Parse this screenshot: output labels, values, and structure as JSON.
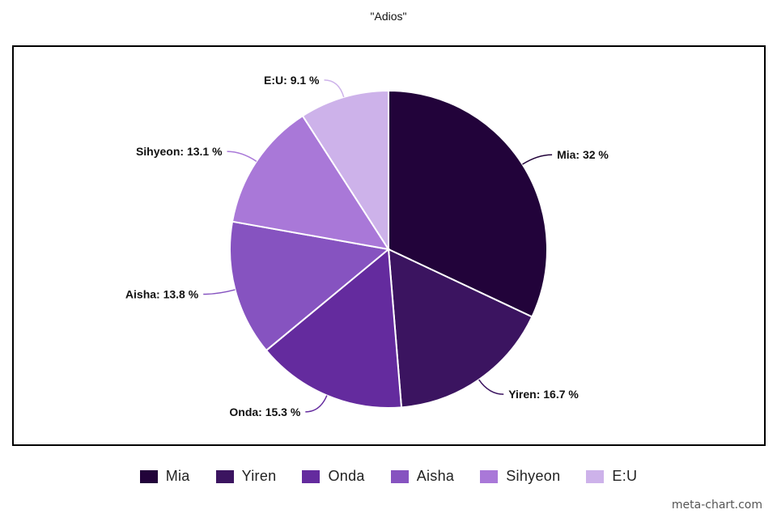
{
  "chart_data": {
    "type": "pie",
    "title": "\"Adios\"",
    "unit": "%",
    "slices": [
      {
        "label": "Mia",
        "value": 32,
        "color": "#22033a"
      },
      {
        "label": "Yiren",
        "value": 16.7,
        "color": "#3b1460"
      },
      {
        "label": "Onda",
        "value": 15.3,
        "color": "#642b9e"
      },
      {
        "label": "Aisha",
        "value": 13.8,
        "color": "#8653c0"
      },
      {
        "label": "Sihyeon",
        "value": 13.1,
        "color": "#a978d8"
      },
      {
        "label": "E:U",
        "value": 9.1,
        "color": "#cdb2ea"
      }
    ],
    "legend_position": "bottom"
  },
  "watermark": "meta-chart.com"
}
